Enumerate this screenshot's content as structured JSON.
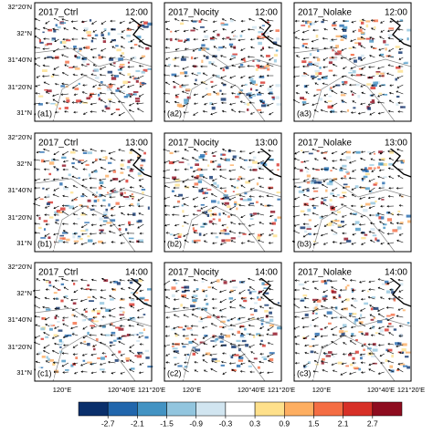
{
  "panels": [
    {
      "title": "2017_Ctrl",
      "time": "12:00",
      "label": "(a1)"
    },
    {
      "title": "2017_Nocity",
      "time": "12:00",
      "label": "(a2)"
    },
    {
      "title": "2017_Nolake",
      "time": "12:00",
      "label": "(a3)"
    },
    {
      "title": "2017_Ctrl",
      "time": "13:00",
      "label": "(b1)"
    },
    {
      "title": "2017_Nocity",
      "time": "13:00",
      "label": "(b2)"
    },
    {
      "title": "2017_Nolake",
      "time": "13:00",
      "label": "(b3)"
    },
    {
      "title": "2017_Ctrl",
      "time": "14:00",
      "label": "(c1)"
    },
    {
      "title": "2017_Nocity",
      "time": "14:00",
      "label": "(c2)"
    },
    {
      "title": "2017_Nolake",
      "time": "14:00",
      "label": "(c3)"
    }
  ],
  "y_axis_labels": [
    "32°20'N",
    "32°N",
    "31°40'N",
    "31°20'N",
    "31°N"
  ],
  "x_axis_labels": [
    "120°E",
    "120°40'E",
    "121°20'E"
  ],
  "colorbar": {
    "ticks": [
      -2.7,
      -2.1,
      -1.5,
      -0.9,
      -0.3,
      0.3,
      0.9,
      1.5,
      2.1,
      2.7
    ],
    "colors": [
      "#0a2f6b",
      "#2166ac",
      "#4393c3",
      "#92c5de",
      "#d1e5f0",
      "#ffffff",
      "#fee08b",
      "#fdae61",
      "#f46d43",
      "#d73027",
      "#8e0c1f"
    ]
  }
}
